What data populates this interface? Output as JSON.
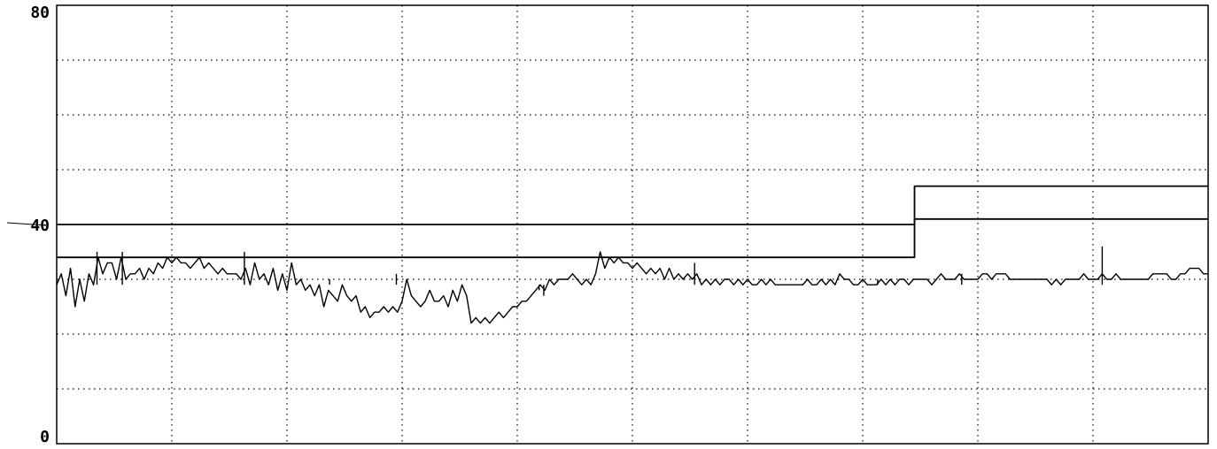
{
  "chart_data": {
    "type": "line",
    "title": "",
    "xlabel": "",
    "ylabel": "",
    "ylim": [
      0,
      80
    ],
    "xlim": [
      0,
      1000
    ],
    "yticks_labeled": [
      "80",
      "40",
      "0"
    ],
    "y_gridlines": [
      10,
      20,
      30,
      50,
      60,
      70
    ],
    "x_gridlines": 10,
    "grid": true,
    "colors": {
      "line": "#000000",
      "grid": "#000000",
      "background": "#ffffff"
    },
    "series": [
      {
        "kind": "step",
        "points": [
          [
            0,
            40
          ],
          [
            745,
            40
          ],
          [
            745,
            47
          ],
          [
            1000,
            47
          ]
        ]
      },
      {
        "kind": "step",
        "points": [
          [
            0,
            34
          ],
          [
            745,
            34
          ],
          [
            745,
            41
          ],
          [
            1000,
            41
          ]
        ]
      },
      {
        "kind": "signal",
        "points": [
          [
            0,
            29
          ],
          [
            4,
            31
          ],
          [
            8,
            27
          ],
          [
            12,
            32
          ],
          [
            16,
            25
          ],
          [
            20,
            30
          ],
          [
            24,
            26
          ],
          [
            28,
            31
          ],
          [
            32,
            29
          ],
          [
            36,
            34
          ],
          [
            40,
            31
          ],
          [
            44,
            33
          ],
          [
            48,
            33
          ],
          [
            52,
            30
          ],
          [
            56,
            34
          ],
          [
            60,
            30
          ],
          [
            64,
            31
          ],
          [
            68,
            31
          ],
          [
            72,
            32
          ],
          [
            76,
            30
          ],
          [
            80,
            32
          ],
          [
            84,
            31
          ],
          [
            88,
            33
          ],
          [
            92,
            32
          ],
          [
            96,
            34
          ],
          [
            100,
            33
          ],
          [
            104,
            34
          ],
          [
            108,
            33
          ],
          [
            112,
            33
          ],
          [
            116,
            32
          ],
          [
            120,
            33
          ],
          [
            124,
            34
          ],
          [
            128,
            32
          ],
          [
            132,
            33
          ],
          [
            136,
            32
          ],
          [
            140,
            31
          ],
          [
            144,
            32
          ],
          [
            148,
            31
          ],
          [
            152,
            31
          ],
          [
            156,
            31
          ],
          [
            160,
            30
          ],
          [
            164,
            32
          ],
          [
            168,
            29
          ],
          [
            172,
            33
          ],
          [
            176,
            30
          ],
          [
            180,
            31
          ],
          [
            184,
            29
          ],
          [
            188,
            32
          ],
          [
            192,
            28
          ],
          [
            196,
            31
          ],
          [
            200,
            28
          ],
          [
            204,
            33
          ],
          [
            208,
            29
          ],
          [
            212,
            30
          ],
          [
            216,
            28
          ],
          [
            220,
            29
          ],
          [
            224,
            27
          ],
          [
            228,
            29
          ],
          [
            232,
            25
          ],
          [
            236,
            28
          ],
          [
            240,
            27
          ],
          [
            244,
            26
          ],
          [
            248,
            29
          ],
          [
            252,
            27
          ],
          [
            256,
            26
          ],
          [
            260,
            27
          ],
          [
            264,
            24
          ],
          [
            268,
            25
          ],
          [
            272,
            23
          ],
          [
            276,
            24
          ],
          [
            280,
            24
          ],
          [
            284,
            25
          ],
          [
            288,
            24
          ],
          [
            292,
            25
          ],
          [
            296,
            24
          ],
          [
            300,
            26
          ],
          [
            304,
            30
          ],
          [
            308,
            27
          ],
          [
            312,
            26
          ],
          [
            316,
            25
          ],
          [
            320,
            26
          ],
          [
            324,
            28
          ],
          [
            328,
            26
          ],
          [
            332,
            26
          ],
          [
            336,
            27
          ],
          [
            340,
            25
          ],
          [
            344,
            28
          ],
          [
            348,
            26
          ],
          [
            352,
            29
          ],
          [
            356,
            27
          ],
          [
            360,
            22
          ],
          [
            364,
            23
          ],
          [
            368,
            22
          ],
          [
            372,
            23
          ],
          [
            376,
            22
          ],
          [
            380,
            23
          ],
          [
            384,
            24
          ],
          [
            388,
            23
          ],
          [
            392,
            24
          ],
          [
            396,
            25
          ],
          [
            400,
            25
          ],
          [
            404,
            26
          ],
          [
            408,
            26
          ],
          [
            412,
            27
          ],
          [
            416,
            28
          ],
          [
            420,
            29
          ],
          [
            424,
            28
          ],
          [
            428,
            30
          ],
          [
            432,
            29
          ],
          [
            436,
            30
          ],
          [
            440,
            30
          ],
          [
            444,
            30
          ],
          [
            448,
            31
          ],
          [
            452,
            30
          ],
          [
            456,
            29
          ],
          [
            460,
            30
          ],
          [
            464,
            29
          ],
          [
            468,
            31
          ],
          [
            472,
            35
          ],
          [
            476,
            32
          ],
          [
            480,
            34
          ],
          [
            484,
            33
          ],
          [
            488,
            34
          ],
          [
            492,
            33
          ],
          [
            496,
            33
          ],
          [
            500,
            32
          ],
          [
            504,
            33
          ],
          [
            508,
            32
          ],
          [
            512,
            31
          ],
          [
            516,
            32
          ],
          [
            520,
            31
          ],
          [
            524,
            32
          ],
          [
            528,
            30
          ],
          [
            532,
            32
          ],
          [
            536,
            30
          ],
          [
            540,
            31
          ],
          [
            544,
            30
          ],
          [
            548,
            31
          ],
          [
            552,
            30
          ],
          [
            556,
            31
          ],
          [
            560,
            29
          ],
          [
            564,
            30
          ],
          [
            568,
            29
          ],
          [
            572,
            30
          ],
          [
            576,
            29
          ],
          [
            580,
            30
          ],
          [
            584,
            30
          ],
          [
            588,
            29
          ],
          [
            592,
            30
          ],
          [
            596,
            29
          ],
          [
            600,
            30
          ],
          [
            604,
            29
          ],
          [
            608,
            29
          ],
          [
            612,
            30
          ],
          [
            616,
            29
          ],
          [
            620,
            30
          ],
          [
            624,
            29
          ],
          [
            628,
            29
          ],
          [
            632,
            29
          ],
          [
            636,
            29
          ],
          [
            640,
            29
          ],
          [
            644,
            29
          ],
          [
            648,
            29
          ],
          [
            652,
            30
          ],
          [
            656,
            29
          ],
          [
            660,
            29
          ],
          [
            664,
            30
          ],
          [
            668,
            29
          ],
          [
            672,
            30
          ],
          [
            676,
            29
          ],
          [
            680,
            31
          ],
          [
            684,
            30
          ],
          [
            688,
            30
          ],
          [
            692,
            29
          ],
          [
            696,
            29
          ],
          [
            700,
            30
          ],
          [
            704,
            29
          ],
          [
            708,
            29
          ],
          [
            712,
            29
          ],
          [
            716,
            30
          ],
          [
            720,
            29
          ],
          [
            724,
            30
          ],
          [
            728,
            29
          ],
          [
            732,
            30
          ],
          [
            736,
            30
          ],
          [
            740,
            29
          ],
          [
            744,
            30
          ],
          [
            748,
            30
          ],
          [
            752,
            30
          ],
          [
            756,
            30
          ],
          [
            760,
            29
          ],
          [
            764,
            30
          ],
          [
            768,
            31
          ],
          [
            772,
            30
          ],
          [
            776,
            30
          ],
          [
            780,
            30
          ],
          [
            784,
            31
          ],
          [
            788,
            30
          ],
          [
            792,
            30
          ],
          [
            796,
            30
          ],
          [
            800,
            30
          ],
          [
            804,
            31
          ],
          [
            808,
            31
          ],
          [
            812,
            30
          ],
          [
            816,
            31
          ],
          [
            820,
            31
          ],
          [
            824,
            31
          ],
          [
            828,
            30
          ],
          [
            832,
            30
          ],
          [
            836,
            30
          ],
          [
            840,
            30
          ],
          [
            844,
            30
          ],
          [
            848,
            30
          ],
          [
            852,
            30
          ],
          [
            856,
            30
          ],
          [
            860,
            30
          ],
          [
            864,
            29
          ],
          [
            868,
            30
          ],
          [
            872,
            29
          ],
          [
            876,
            30
          ],
          [
            880,
            30
          ],
          [
            884,
            30
          ],
          [
            888,
            30
          ],
          [
            892,
            31
          ],
          [
            896,
            30
          ],
          [
            900,
            30
          ],
          [
            904,
            30
          ],
          [
            908,
            31
          ],
          [
            912,
            30
          ],
          [
            916,
            30
          ],
          [
            920,
            31
          ],
          [
            924,
            30
          ],
          [
            928,
            30
          ],
          [
            932,
            30
          ],
          [
            936,
            30
          ],
          [
            940,
            30
          ],
          [
            944,
            30
          ],
          [
            948,
            30
          ],
          [
            952,
            31
          ],
          [
            956,
            31
          ],
          [
            960,
            31
          ],
          [
            964,
            31
          ],
          [
            968,
            30
          ],
          [
            972,
            30
          ],
          [
            976,
            31
          ],
          [
            980,
            31
          ],
          [
            984,
            32
          ],
          [
            988,
            32
          ],
          [
            992,
            32
          ],
          [
            996,
            31
          ],
          [
            1000,
            31
          ]
        ],
        "spikes": [
          [
            35,
            35
          ],
          [
            57,
            35
          ],
          [
            163,
            35
          ],
          [
            237,
            30
          ],
          [
            295,
            31
          ],
          [
            419,
            28
          ],
          [
            423,
            27
          ],
          [
            554,
            33
          ],
          [
            713,
            30
          ],
          [
            786,
            31
          ],
          [
            908,
            36
          ]
        ]
      }
    ]
  }
}
